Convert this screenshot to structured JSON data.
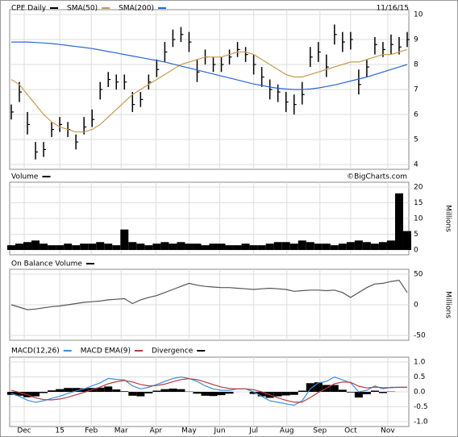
{
  "chart_data": [
    {
      "type": "ohlc",
      "date": "11/16/15",
      "ylim": [
        4,
        10
      ],
      "yticks": [
        4,
        5,
        6,
        7,
        8,
        9,
        10
      ],
      "xlim": [
        0,
        49
      ],
      "grid": true,
      "series": [
        {
          "name": "CPE Daily",
          "color": "#000000",
          "high": [
            6.4,
            7.3,
            6.1,
            4.9,
            4.9,
            5.7,
            5.9,
            5.7,
            5.2,
            5.9,
            6.2,
            7.3,
            7.7,
            7.6,
            7.6,
            6.9,
            6.9,
            7.6,
            8.2,
            8.9,
            9.4,
            9.5,
            9.3,
            8.2,
            8.6,
            8.3,
            8.3,
            8.6,
            8.9,
            8.7,
            8.4,
            7.9,
            7.4,
            7.2,
            6.9,
            6.8,
            7.3,
            8.7,
            8.9,
            8.4,
            9.6,
            9.3,
            9.3,
            7.8,
            8.2,
            9.1,
            8.9,
            9.2,
            9.1,
            9.3
          ],
          "low": [
            5.8,
            6.5,
            5.2,
            4.2,
            4.3,
            5.1,
            5.3,
            5.1,
            4.6,
            5.2,
            5.5,
            6.6,
            7.1,
            7.0,
            7.0,
            6.1,
            6.3,
            7.0,
            7.5,
            8.1,
            8.7,
            8.9,
            8.5,
            7.3,
            8.0,
            7.7,
            7.7,
            8.0,
            8.3,
            8.1,
            7.6,
            7.1,
            6.6,
            6.5,
            6.1,
            6.0,
            6.4,
            7.9,
            8.1,
            7.5,
            8.8,
            8.5,
            8.6,
            6.8,
            7.5,
            8.4,
            8.3,
            8.4,
            8.4,
            8.7
          ],
          "close": [
            6.1,
            6.9,
            5.6,
            4.5,
            4.6,
            5.4,
            5.6,
            5.4,
            4.9,
            5.5,
            5.8,
            7.0,
            7.4,
            7.3,
            7.3,
            6.4,
            6.6,
            7.3,
            7.8,
            8.5,
            9.0,
            9.2,
            8.9,
            7.7,
            8.3,
            8.0,
            8.0,
            8.3,
            8.6,
            8.4,
            8.0,
            7.5,
            7.0,
            6.9,
            6.5,
            6.4,
            6.8,
            8.3,
            8.5,
            7.9,
            9.2,
            8.9,
            9.0,
            7.2,
            7.9,
            8.8,
            8.6,
            8.8,
            8.7,
            9.0
          ]
        },
        {
          "name": "SMA(50)",
          "color": "#c89a50",
          "values": [
            7.4,
            7.2,
            6.8,
            6.4,
            6.0,
            5.7,
            5.5,
            5.4,
            5.3,
            5.3,
            5.4,
            5.6,
            5.9,
            6.2,
            6.5,
            6.8,
            7.0,
            7.2,
            7.4,
            7.6,
            7.8,
            8.0,
            8.1,
            8.2,
            8.3,
            8.3,
            8.3,
            8.4,
            8.5,
            8.5,
            8.4,
            8.2,
            8.0,
            7.8,
            7.6,
            7.5,
            7.5,
            7.6,
            7.7,
            7.8,
            7.9,
            8.0,
            8.1,
            8.1,
            8.2,
            8.3,
            8.4,
            8.4,
            8.5,
            8.6
          ]
        },
        {
          "name": "SMA(200)",
          "color": "#2a64d8",
          "values": [
            8.9,
            8.9,
            8.9,
            8.88,
            8.86,
            8.84,
            8.8,
            8.76,
            8.72,
            8.68,
            8.64,
            8.58,
            8.52,
            8.46,
            8.4,
            8.34,
            8.28,
            8.22,
            8.16,
            8.1,
            8.02,
            7.94,
            7.86,
            7.78,
            7.7,
            7.62,
            7.54,
            7.46,
            7.38,
            7.3,
            7.22,
            7.16,
            7.1,
            7.05,
            7.02,
            7.0,
            7.0,
            7.02,
            7.06,
            7.12,
            7.18,
            7.26,
            7.34,
            7.42,
            7.5,
            7.6,
            7.7,
            7.8,
            7.9,
            8.0
          ]
        }
      ]
    },
    {
      "type": "bar",
      "title": "Volume",
      "source": "©BigCharts.com",
      "ylabel": "Millions",
      "color": "#000000",
      "ylim": [
        0,
        20
      ],
      "yticks": [
        0,
        5,
        10,
        15,
        20
      ],
      "xlim": [
        0,
        49
      ],
      "grid": true,
      "values": [
        1.5,
        2,
        2.5,
        3,
        2,
        1.5,
        1.5,
        2,
        1.5,
        2,
        2,
        2.5,
        2,
        1.5,
        6.5,
        2.5,
        2,
        1.5,
        2,
        2.5,
        2,
        2.5,
        2,
        2,
        1.5,
        2,
        2,
        1.5,
        1.5,
        2,
        1.5,
        1.5,
        2,
        2.5,
        2.5,
        2,
        3,
        2.5,
        2,
        2,
        1.5,
        2,
        2.5,
        3,
        2.5,
        2,
        2.5,
        3,
        18,
        6
      ]
    },
    {
      "type": "line",
      "title": "On Balance Volume",
      "ylabel": "Millions",
      "color": "#555555",
      "ylim": [
        -50,
        50
      ],
      "yticks": [
        -50,
        0,
        50
      ],
      "xlim": [
        0,
        49
      ],
      "grid": true,
      "values": [
        0,
        -4,
        -8,
        -7,
        -5,
        -3,
        -2,
        0,
        2,
        4,
        5,
        6,
        8,
        9,
        10,
        2,
        8,
        12,
        15,
        20,
        25,
        30,
        35,
        32,
        30,
        29,
        28,
        28,
        27,
        26,
        25,
        26,
        27,
        26,
        25,
        22,
        23,
        24,
        24,
        23,
        24,
        20,
        12,
        20,
        28,
        34,
        35,
        38,
        40,
        20
      ]
    },
    {
      "type": "macd",
      "ylim": [
        -1,
        1
      ],
      "yticks": [
        {
          "value": -1,
          "label": "-1.0"
        },
        -0.5,
        {
          "value": 0,
          "label": "0.0"
        },
        0.5,
        {
          "value": 1,
          "label": "1.0"
        }
      ],
      "xlim": [
        0,
        49
      ],
      "grid": true,
      "xticks": [
        {
          "value": 1.6,
          "label": "Dec"
        },
        {
          "value": 6,
          "label": "15"
        },
        {
          "value": 9.9,
          "label": "Feb"
        },
        {
          "value": 13.6,
          "label": "Mar"
        },
        {
          "value": 17.9,
          "label": "Apr"
        },
        {
          "value": 22,
          "label": "May"
        },
        {
          "value": 25.8,
          "label": "Jun"
        },
        {
          "value": 30,
          "label": "Jul"
        },
        {
          "value": 34.1,
          "label": "Aug"
        },
        {
          "value": 38.2,
          "label": "Sep"
        },
        {
          "value": 42,
          "label": "Oct"
        },
        {
          "value": 46.6,
          "label": "Nov"
        }
      ],
      "series": [
        {
          "name": "MACD(12,26)",
          "color": "#3c8ce0",
          "mark": "line",
          "values": [
            -0.05,
            -0.15,
            -0.28,
            -0.35,
            -0.3,
            -0.22,
            -0.15,
            -0.05,
            0.03,
            0.1,
            0.2,
            0.3,
            0.45,
            0.42,
            0.4,
            0.2,
            0.1,
            0.15,
            0.25,
            0.35,
            0.45,
            0.5,
            0.45,
            0.35,
            0.2,
            0.1,
            0.05,
            0.05,
            0.1,
            0.1,
            0.0,
            -0.15,
            -0.3,
            -0.35,
            -0.4,
            -0.45,
            -0.3,
            0.1,
            0.3,
            0.35,
            0.5,
            0.4,
            0.3,
            0.0,
            0.05,
            0.2,
            0.1,
            0.15,
            0.15,
            0.15
          ]
        },
        {
          "name": "MACD EMA(9)",
          "color": "#b83c3c",
          "mark": "line",
          "values": [
            0.05,
            -0.02,
            -0.1,
            -0.2,
            -0.26,
            -0.27,
            -0.24,
            -0.18,
            -0.1,
            -0.02,
            0.07,
            0.16,
            0.27,
            0.34,
            0.38,
            0.33,
            0.25,
            0.2,
            0.21,
            0.26,
            0.34,
            0.41,
            0.44,
            0.41,
            0.33,
            0.24,
            0.16,
            0.11,
            0.1,
            0.1,
            0.07,
            0.0,
            -0.1,
            -0.2,
            -0.28,
            -0.35,
            -0.34,
            -0.19,
            -0.02,
            0.12,
            0.27,
            0.33,
            0.32,
            0.19,
            0.13,
            0.16,
            0.14,
            0.14,
            0.15,
            0.15
          ]
        },
        {
          "name": "Divergence",
          "color": "#000000",
          "mark": "bar",
          "values": [
            -0.1,
            -0.13,
            -0.18,
            -0.15,
            -0.04,
            0.05,
            0.09,
            0.13,
            0.13,
            0.12,
            0.13,
            0.14,
            0.18,
            0.08,
            0.02,
            -0.13,
            -0.15,
            -0.05,
            0.04,
            0.09,
            0.11,
            0.09,
            0.01,
            -0.06,
            -0.13,
            -0.14,
            -0.11,
            -0.06,
            0,
            0,
            -0.07,
            -0.15,
            -0.2,
            -0.15,
            -0.12,
            -0.1,
            0.04,
            0.29,
            0.32,
            0.23,
            0.23,
            0.07,
            -0.02,
            -0.19,
            -0.08,
            0.04,
            -0.04,
            0.01,
            0,
            0
          ]
        }
      ]
    }
  ]
}
